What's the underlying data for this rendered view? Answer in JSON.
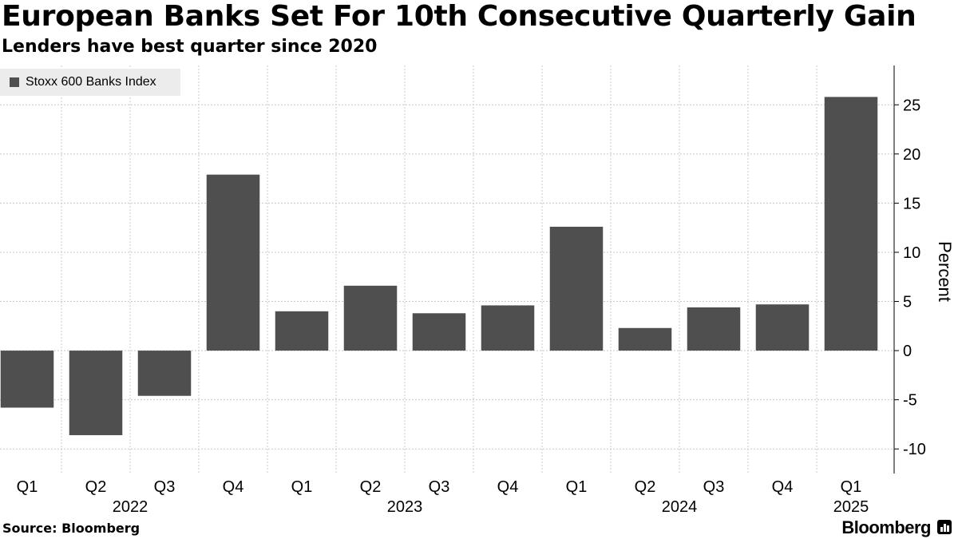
{
  "header": {
    "title": "European Banks Set For 10th Consecutive Quarterly Gain",
    "subtitle": "Lenders have best quarter since 2020"
  },
  "footer": {
    "source": "Source: Bloomberg",
    "brand": "Bloomberg"
  },
  "colors": {
    "bar": "#4f4f4f",
    "grid": "#c8c8c8",
    "legend_bg": "#ececec"
  },
  "chart_data": {
    "type": "bar",
    "title": "European Banks Set For 10th Consecutive Quarterly Gain",
    "subtitle": "Lenders have best quarter since 2020",
    "categories": [
      "Q1",
      "Q2",
      "Q3",
      "Q4",
      "Q1",
      "Q2",
      "Q3",
      "Q4",
      "Q1",
      "Q2",
      "Q3",
      "Q4",
      "Q1"
    ],
    "year_labels": [
      {
        "label": "2022",
        "category_index": 1.5
      },
      {
        "label": "2023",
        "category_index": 5.5
      },
      {
        "label": "2024",
        "category_index": 9.5
      },
      {
        "label": "2025",
        "category_index": 12
      }
    ],
    "series": [
      {
        "name": "Stoxx 600 Banks Index",
        "values": [
          -5.8,
          -8.6,
          -4.6,
          17.9,
          4.0,
          6.6,
          3.8,
          4.6,
          12.6,
          2.3,
          4.4,
          4.7,
          25.8
        ]
      }
    ],
    "ylabel": "Percent",
    "xlabel": "",
    "ylim": [
      -12.5,
      29
    ],
    "yticks": [
      -10,
      -5,
      0,
      5,
      10,
      15,
      20,
      25
    ],
    "ytick_labels": [
      "-10",
      "-5",
      "0",
      "5",
      "10",
      "15",
      "20",
      "25"
    ],
    "grid": true,
    "legend": "top-left"
  }
}
